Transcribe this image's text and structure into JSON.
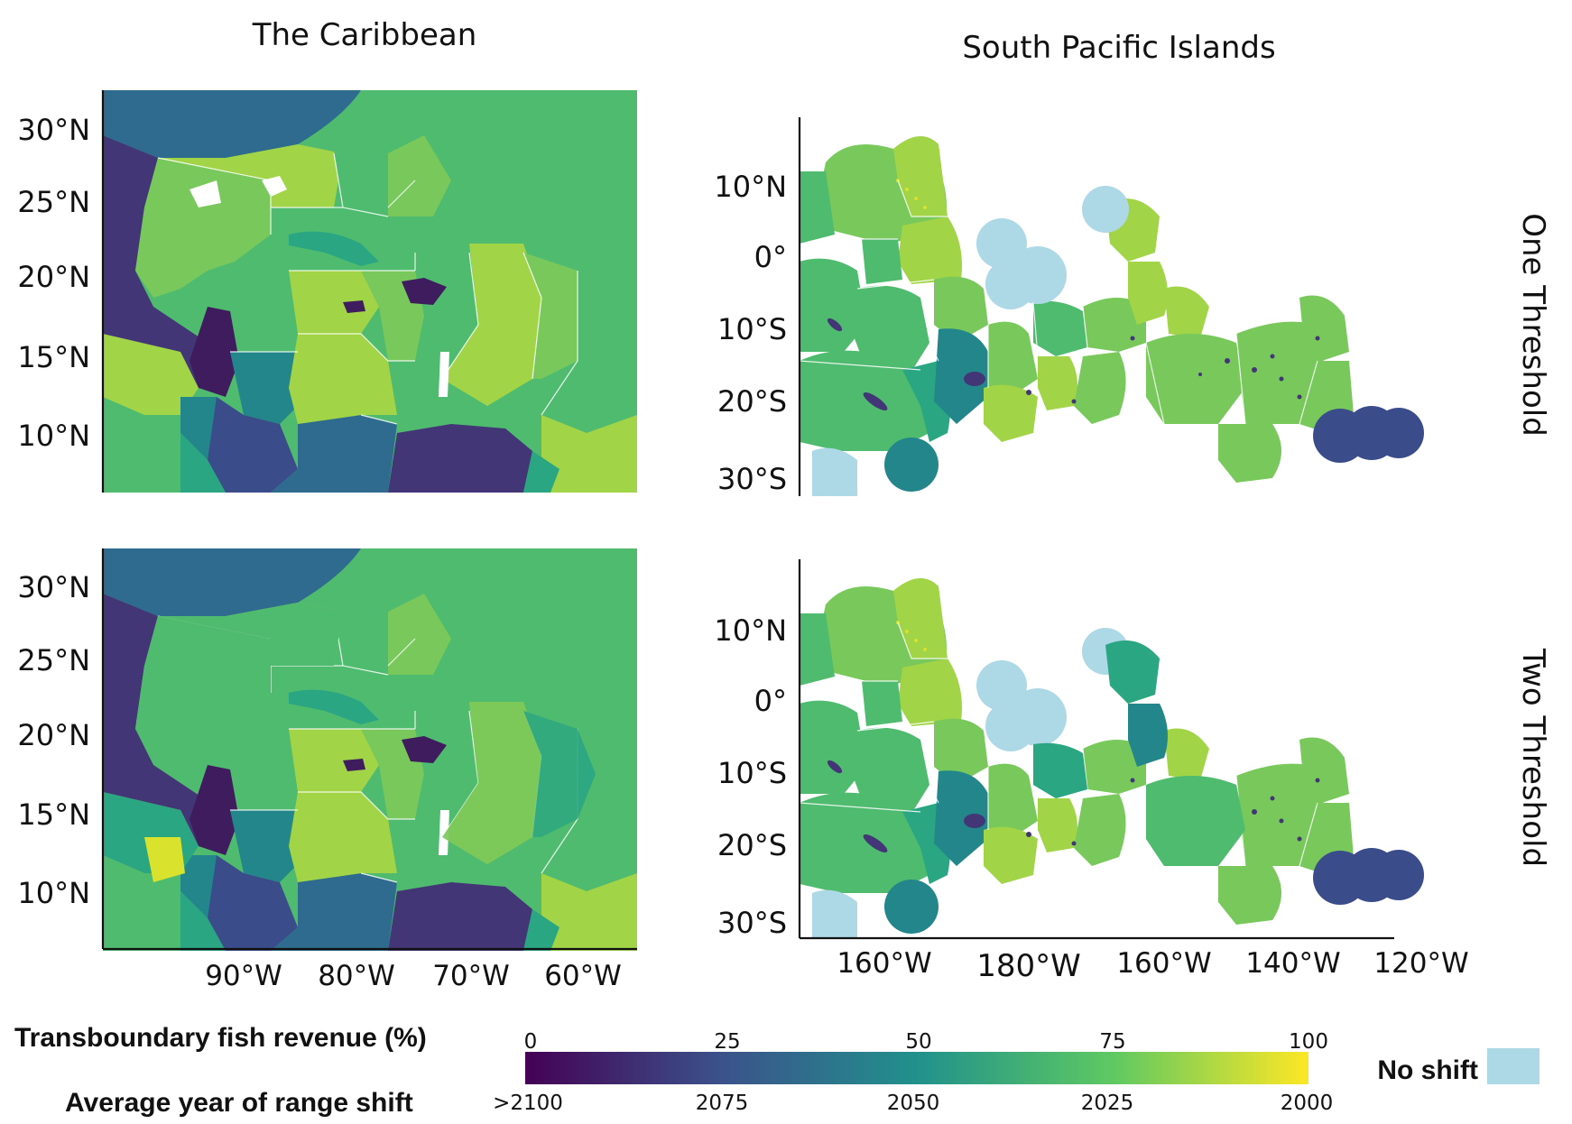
{
  "titles": {
    "caribbean": "The Caribbean",
    "pacific": "South Pacific Islands"
  },
  "row_labels": {
    "top": "One Threshold",
    "bottom": "Two Threshold"
  },
  "caribbean_lat_labels": [
    "30°N",
    "25°N",
    "20°N",
    "15°N",
    "10°N"
  ],
  "pacific_lat_labels": [
    "10°N",
    "0°",
    "10°S",
    "20°S",
    "30°S"
  ],
  "caribbean_lon_labels": [
    "90°W",
    "80°W",
    "70°W",
    "60°W"
  ],
  "pacific_lon_labels": [
    "160°W",
    "180°W",
    "160°W",
    "140°W",
    "120°W"
  ],
  "legend": {
    "label_top": "Transboundary fish revenue (%)",
    "label_bottom": "Average year of range shift",
    "top_ticks": [
      "0",
      "25",
      "50",
      "75",
      "100"
    ],
    "bottom_ticks": [
      ">2100",
      "2075",
      "2050",
      "2025",
      "2000"
    ],
    "no_shift_label": "No shift",
    "no_shift_color": "#add8e6",
    "scale_colors": [
      "#440154",
      "#3b528b",
      "#21918c",
      "#5ec962",
      "#fde725"
    ]
  },
  "colors": {
    "dark_purple": "#3f1c5e",
    "purple": "#433676",
    "indigo": "#3a4d8a",
    "blue": "#2f6b8e",
    "teal": "#23868b",
    "teal_green": "#2aa682",
    "green": "#4fbb6f",
    "light_green": "#78c85c",
    "lime": "#a2d447",
    "yellow": "#d9e22d",
    "no_shift": "#add8e6"
  }
}
